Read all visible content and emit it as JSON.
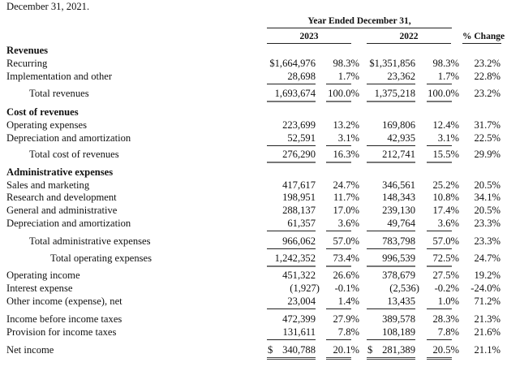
{
  "intro_fragment": "December 31, 2021.",
  "header": {
    "group": "Year Ended December 31,",
    "year1": "2023",
    "year2": "2022",
    "change": "% Change"
  },
  "rows": [
    {
      "label": "Revenues",
      "type": "section"
    },
    {
      "label": "Recurring",
      "values": [
        "$1,664,976",
        "98.3%",
        "$1,351,856",
        "98.3%",
        "23.2%"
      ]
    },
    {
      "label": "Implementation and other",
      "values": [
        "28,698",
        "1.7%",
        "23,362",
        "1.7%",
        "22.8%"
      ]
    },
    {
      "label": "Total revenues",
      "indent": 1,
      "values": [
        "1,693,674",
        "100.0%",
        "1,375,218",
        "100.0%",
        "23.2%"
      ]
    },
    {
      "label": "Cost of revenues",
      "type": "section"
    },
    {
      "label": "Operating expenses",
      "values": [
        "223,699",
        "13.2%",
        "169,806",
        "12.4%",
        "31.7%"
      ]
    },
    {
      "label": "Depreciation and amortization",
      "values": [
        "52,591",
        "3.1%",
        "42,935",
        "3.1%",
        "22.5%"
      ]
    },
    {
      "label": "Total cost of revenues",
      "indent": 1,
      "values": [
        "276,290",
        "16.3%",
        "212,741",
        "15.5%",
        "29.9%"
      ]
    },
    {
      "label": "Administrative expenses",
      "type": "section"
    },
    {
      "label": "Sales and marketing",
      "values": [
        "417,617",
        "24.7%",
        "346,561",
        "25.2%",
        "20.5%"
      ]
    },
    {
      "label": "Research and development",
      "values": [
        "198,951",
        "11.7%",
        "148,343",
        "10.8%",
        "34.1%"
      ]
    },
    {
      "label": "General and administrative",
      "values": [
        "288,137",
        "17.0%",
        "239,130",
        "17.4%",
        "20.5%"
      ]
    },
    {
      "label": "Depreciation and amortization",
      "values": [
        "61,357",
        "3.6%",
        "49,764",
        "3.6%",
        "23.3%"
      ]
    },
    {
      "label": "Total administrative expenses",
      "indent": 1,
      "values": [
        "966,062",
        "57.0%",
        "783,798",
        "57.0%",
        "23.3%"
      ]
    },
    {
      "label": "Total operating expenses",
      "indent": 2,
      "values": [
        "1,242,352",
        "73.4%",
        "996,539",
        "72.5%",
        "24.7%"
      ]
    },
    {
      "label": "Operating income",
      "values": [
        "451,322",
        "26.6%",
        "378,679",
        "27.5%",
        "19.2%"
      ]
    },
    {
      "label": "Interest expense",
      "values": [
        "(1,927)",
        "-0.1%",
        "(2,536)",
        "-0.2%",
        "-24.0%"
      ]
    },
    {
      "label": "Other income (expense), net",
      "values": [
        "23,004",
        "1.4%",
        "13,435",
        "1.0%",
        "71.2%"
      ]
    },
    {
      "label": "Income before income taxes",
      "values": [
        "472,399",
        "27.9%",
        "389,578",
        "28.3%",
        "21.3%"
      ]
    },
    {
      "label": "Provision for income taxes",
      "values": [
        "131,611",
        "7.8%",
        "108,189",
        "7.8%",
        "21.6%"
      ]
    },
    {
      "label": "Net income",
      "values": [
        "340,788",
        "20.1%",
        "281,389",
        "20.5%",
        "21.1%"
      ],
      "currency": "$"
    }
  ]
}
